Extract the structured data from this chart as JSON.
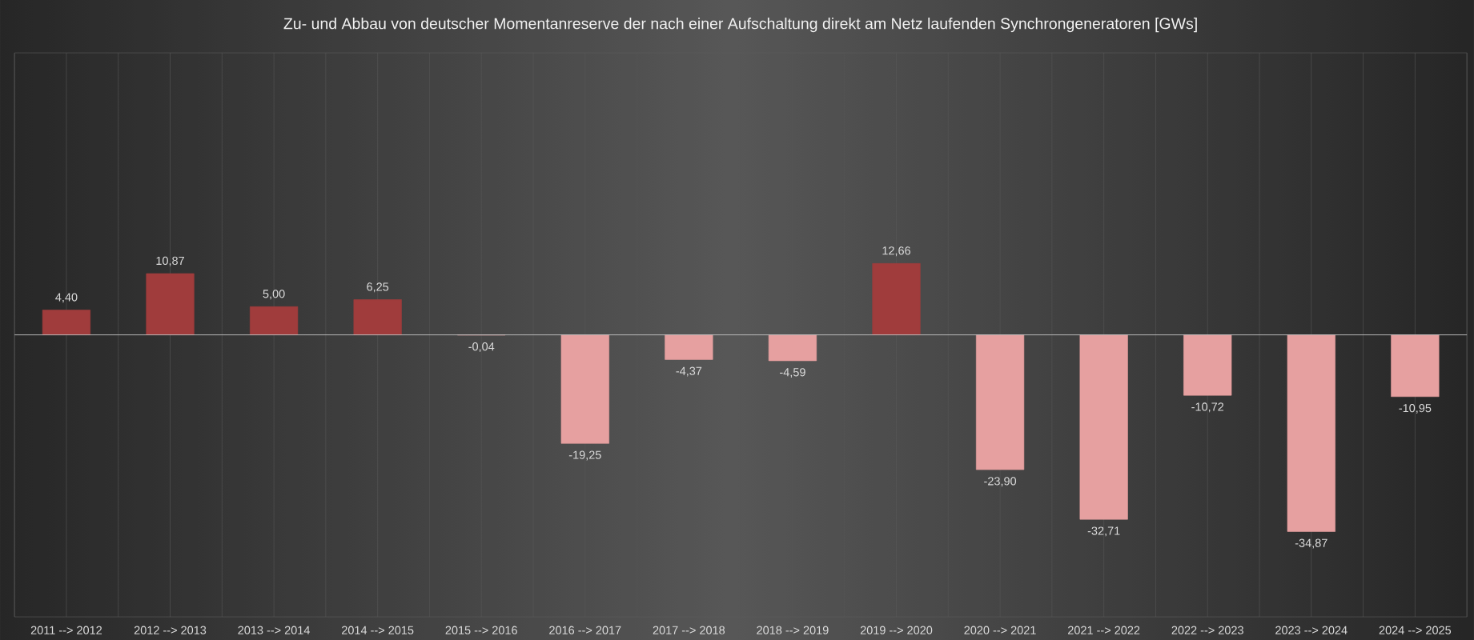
{
  "chart_data": {
    "type": "bar",
    "title": "Zu- und Abbau von deutscher Momentanreserve der nach einer Aufschaltung direkt am Netz laufenden Synchrongeneratoren [GWs]",
    "categories": [
      "2011 --> 2012",
      "2012 --> 2013",
      "2013 --> 2014",
      "2014 --> 2015",
      "2015 --> 2016",
      "2016 --> 2017",
      "2017 --> 2018",
      "2018 --> 2019",
      "2019 --> 2020",
      "2020 --> 2021",
      "2021 --> 2022",
      "2022 --> 2023",
      "2023 --> 2024",
      "2024 --> 2025"
    ],
    "values": [
      4.4,
      10.87,
      5.0,
      6.25,
      -0.04,
      -19.25,
      -4.37,
      -4.59,
      12.66,
      -23.9,
      -32.71,
      -10.72,
      -34.87,
      -10.95
    ],
    "colors": [
      "#a03c3c",
      "#a03c3c",
      "#a03c3c",
      "#a03c3c",
      "#e6a0a0",
      "#e6a0a0",
      "#e6a0a0",
      "#e6a0a0",
      "#a03c3c",
      "#e6a0a0",
      "#e6a0a0",
      "#e6a0a0",
      "#e6a0a0",
      "#e6a0a0"
    ],
    "value_labels": [
      "4,40",
      "10,87",
      "5,00",
      "6,25",
      "-0,04",
      "-19,25",
      "-4,37",
      "-4,59",
      "12,66",
      "-23,90",
      "-32,71",
      "-10,72",
      "-34,87",
      "-10,95"
    ],
    "ylim": [
      -50,
      50
    ],
    "grid": "x",
    "tick_labels": "x"
  }
}
